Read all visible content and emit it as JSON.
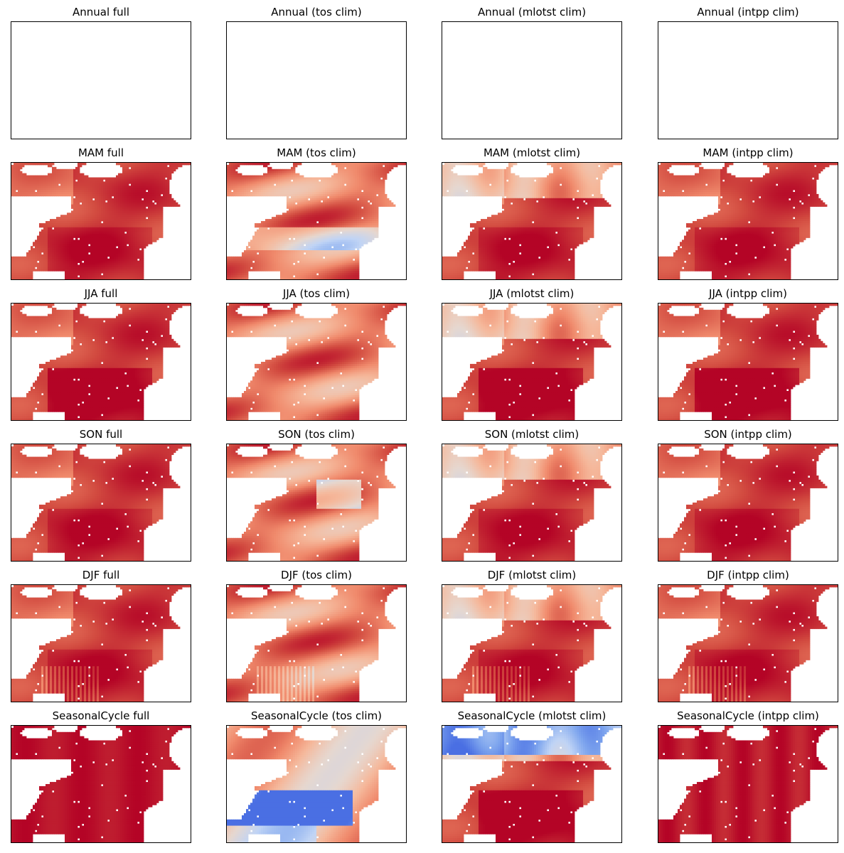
{
  "chart_data": {
    "type": "heatmap",
    "layout": "6 rows x 4 columns grid of map panels",
    "colormap": "coolwarm",
    "colormap_colors": {
      "deep_red": "#b40426",
      "red": "#d24b40",
      "salmon": "#f08a6c",
      "light_salmon": "#f5b89b",
      "pale": "#e6d7cf",
      "light_blue": "#c0d4f5",
      "blue": "#7fa6ee",
      "deep_blue": "#4a6fe3"
    },
    "xticks": [],
    "yticks": [],
    "panels": [
      {
        "title": "Annual full",
        "period": "Annual",
        "variant": "full",
        "empty": true
      },
      {
        "title": "Annual (tos clim)",
        "period": "Annual",
        "variant": "tos clim",
        "empty": true
      },
      {
        "title": "Annual (mlotst clim)",
        "period": "Annual",
        "variant": "mlotst clim",
        "empty": true
      },
      {
        "title": "Annual (intpp clim)",
        "period": "Annual",
        "variant": "intpp clim",
        "empty": true
      },
      {
        "title": "MAM full",
        "period": "MAM",
        "variant": "full",
        "empty": false
      },
      {
        "title": "MAM (tos clim)",
        "period": "MAM",
        "variant": "tos clim",
        "empty": false
      },
      {
        "title": "MAM (mlotst clim)",
        "period": "MAM",
        "variant": "mlotst clim",
        "empty": false
      },
      {
        "title": "MAM (intpp clim)",
        "period": "MAM",
        "variant": "intpp clim",
        "empty": false
      },
      {
        "title": "JJA full",
        "period": "JJA",
        "variant": "full",
        "empty": false
      },
      {
        "title": "JJA (tos clim)",
        "period": "JJA",
        "variant": "tos clim",
        "empty": false
      },
      {
        "title": "JJA (mlotst clim)",
        "period": "JJA",
        "variant": "mlotst clim",
        "empty": false
      },
      {
        "title": "JJA (intpp clim)",
        "period": "JJA",
        "variant": "intpp clim",
        "empty": false
      },
      {
        "title": "SON full",
        "period": "SON",
        "variant": "full",
        "empty": false
      },
      {
        "title": "SON (tos clim)",
        "period": "SON",
        "variant": "tos clim",
        "empty": false
      },
      {
        "title": "SON (mlotst clim)",
        "period": "SON",
        "variant": "mlotst clim",
        "empty": false
      },
      {
        "title": "SON (intpp clim)",
        "period": "SON",
        "variant": "intpp clim",
        "empty": false
      },
      {
        "title": "DJF full",
        "period": "DJF",
        "variant": "full",
        "empty": false
      },
      {
        "title": "DJF (tos clim)",
        "period": "DJF",
        "variant": "tos clim",
        "empty": false
      },
      {
        "title": "DJF (mlotst clim)",
        "period": "DJF",
        "variant": "mlotst clim",
        "empty": false
      },
      {
        "title": "DJF (intpp clim)",
        "period": "DJF",
        "variant": "intpp clim",
        "empty": false
      },
      {
        "title": "SeasonalCycle full",
        "period": "SeasonalCycle",
        "variant": "full",
        "empty": false
      },
      {
        "title": "SeasonalCycle (tos clim)",
        "period": "SeasonalCycle",
        "variant": "tos clim",
        "empty": false
      },
      {
        "title": "SeasonalCycle (mlotst clim)",
        "period": "SeasonalCycle",
        "variant": "mlotst clim",
        "empty": false
      },
      {
        "title": "SeasonalCycle (intpp clim)",
        "period": "SeasonalCycle",
        "variant": "intpp clim",
        "empty": false
      }
    ]
  }
}
